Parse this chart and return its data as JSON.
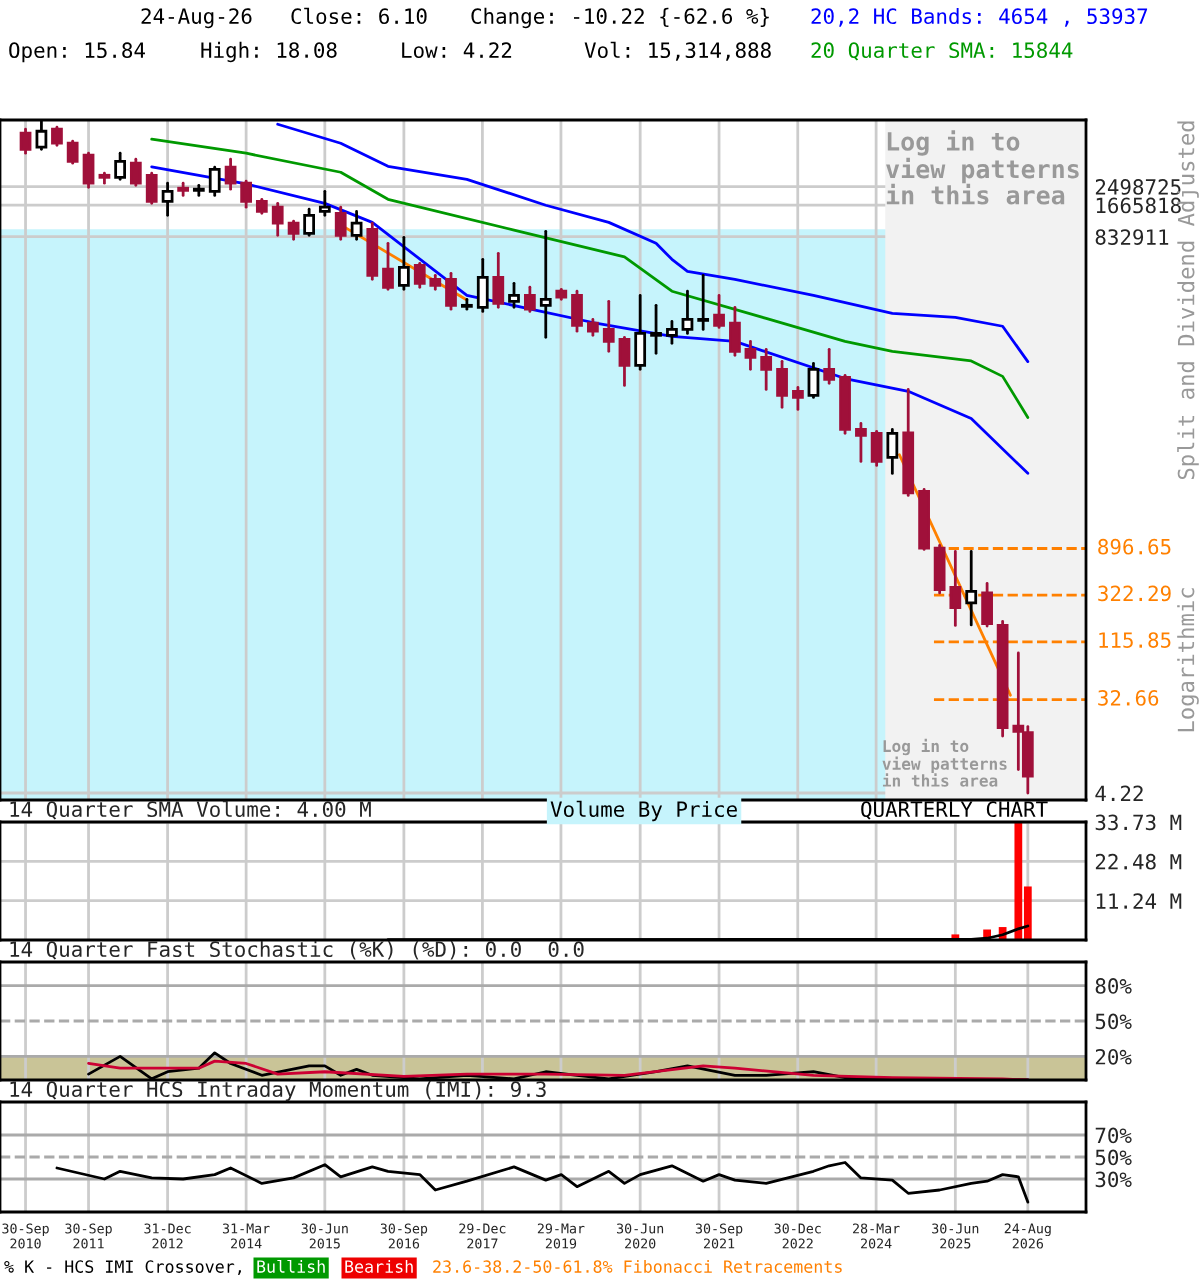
{
  "chart_data": [
    {
      "type": "candlestick",
      "log": true,
      "grid": true,
      "tick_labels": "y",
      "x": [
        "2010-09-30",
        "2010-12-31",
        "2011-03-31",
        "2011-06-30",
        "2011-09-30",
        "2011-12-31",
        "2012-03-31",
        "2012-06-30",
        "2012-09-30",
        "2012-12-31",
        "2013-03-31",
        "2013-06-30",
        "2013-09-30",
        "2013-12-31",
        "2014-03-31",
        "2014-06-30",
        "2014-09-30",
        "2014-12-31",
        "2015-03-31",
        "2015-06-30",
        "2015-09-30",
        "2015-12-31",
        "2016-03-31",
        "2016-06-30",
        "2016-09-30",
        "2016-12-31",
        "2017-03-31",
        "2017-06-30",
        "2017-09-30",
        "2017-12-31",
        "2018-03-31",
        "2018-06-30",
        "2018-09-30",
        "2018-12-31",
        "2019-03-31",
        "2019-06-30",
        "2019-09-30",
        "2019-12-31",
        "2020-03-31",
        "2020-06-30",
        "2020-09-30",
        "2020-12-31",
        "2021-03-31",
        "2021-06-30",
        "2021-09-30",
        "2021-12-31",
        "2022-03-31",
        "2022-06-30",
        "2022-09-30",
        "2022-12-31",
        "2023-03-31",
        "2023-06-30",
        "2023-09-30",
        "2023-12-31",
        "2024-03-31",
        "2024-06-30",
        "2024-09-30",
        "2024-12-31",
        "2025-03-31",
        "2025-06-30",
        "2025-09-30",
        "2025-12-31",
        "2026-03-31",
        "2026-06-30",
        "2026-08-24"
      ],
      "ohlc": [
        [
          8040000,
          8780000,
          5190000,
          5660000
        ],
        [
          5920000,
          10500000,
          5660000,
          8400000
        ],
        [
          8780000,
          9180000,
          6180000,
          6460000
        ],
        [
          6460000,
          6750000,
          4170000,
          4350000
        ],
        [
          4970000,
          5190000,
          2460000,
          2690000
        ],
        [
          3200000,
          3350000,
          2690000,
          3060000
        ],
        [
          3060000,
          5190000,
          2930000,
          4350000
        ],
        [
          4170000,
          4550000,
          2570000,
          2690000
        ],
        [
          3200000,
          3350000,
          1730000,
          1810000
        ],
        [
          1810000,
          2690000,
          1330000,
          2250000
        ],
        [
          2410000,
          2690000,
          2060000,
          2300000
        ],
        [
          2300000,
          2570000,
          2060000,
          2360000
        ],
        [
          2250000,
          3820000,
          2060000,
          3650000
        ],
        [
          3820000,
          4550000,
          2360000,
          2690000
        ],
        [
          2690000,
          2810000,
          1590000,
          1810000
        ],
        [
          1810000,
          1890000,
          1390000,
          1450000
        ],
        [
          1590000,
          1730000,
          859000,
          1120000
        ],
        [
          1120000,
          1170000,
          787000,
          898000
        ],
        [
          898000,
          1520000,
          859000,
          1330000
        ],
        [
          1450000,
          2250000,
          1330000,
          1590000
        ],
        [
          1390000,
          1590000,
          787000,
          859000
        ],
        [
          859000,
          1450000,
          787000,
          1120000
        ],
        [
          980000,
          1120000,
          327000,
          357000
        ],
        [
          408000,
          721000,
          263000,
          275000
        ],
        [
          287000,
          822000,
          263000,
          426000
        ],
        [
          445000,
          465000,
          275000,
          300000
        ],
        [
          327000,
          357000,
          263000,
          287000
        ],
        [
          327000,
          373000,
          170000,
          185000
        ],
        [
          181000,
          211000,
          170000,
          185000
        ],
        [
          177000,
          507000,
          162000,
          342000
        ],
        [
          342000,
          579000,
          177000,
          193000
        ],
        [
          202000,
          300000,
          177000,
          230000
        ],
        [
          230000,
          275000,
          162000,
          170000
        ],
        [
          185000,
          938000,
          91800,
          211000
        ],
        [
          252000,
          263000,
          211000,
          221000
        ],
        [
          230000,
          252000,
          105000,
          119000
        ],
        [
          125000,
          136000,
          95900,
          105000
        ],
        [
          109000,
          202000,
          67500,
          84000
        ],
        [
          87800,
          91800,
          32000,
          49700
        ],
        [
          49700,
          230000,
          45500,
          100000
        ],
        [
          95900,
          185000,
          64600,
          100000
        ],
        [
          95900,
          130000,
          80400,
          109000
        ],
        [
          109000,
          252000,
          100000,
          136000
        ],
        [
          133000,
          357000,
          109000,
          136000
        ],
        [
          149000,
          230000,
          114000,
          119000
        ],
        [
          125000,
          177000,
          61800,
          67500
        ],
        [
          70500,
          84000,
          45500,
          59200
        ],
        [
          59200,
          70500,
          29300,
          45500
        ],
        [
          45500,
          54200,
          19800,
          25700
        ],
        [
          28100,
          30600,
          18900,
          24600
        ],
        [
          25700,
          51900,
          24600,
          45500
        ],
        [
          45500,
          70500,
          33500,
          36500
        ],
        [
          38200,
          39900,
          11200,
          12200
        ],
        [
          12200,
          13900,
          6050,
          10700
        ],
        [
          11200,
          11700,
          5540,
          6050
        ],
        [
          6600,
          12200,
          4650,
          11200
        ],
        [
          11300,
          29300,
          2870,
          3040
        ],
        [
          3130,
          3270,
          878,
          905
        ],
        [
          905,
          959,
          339,
          365
        ],
        [
          382,
          840,
          166,
          246
        ],
        [
          272,
          840,
          168,
          350
        ],
        [
          339,
          417,
          164,
          173
        ],
        [
          166,
          181,
          14.7,
          17.7
        ],
        [
          18.3,
          90.9,
          7.05,
          16.32
        ],
        [
          15.84,
          18.08,
          4.22,
          6.1
        ]
      ],
      "series": [
        {
          "type": "line",
          "name": "20,2 HC Bands: 4654 , 53937",
          "color": "#0000ff",
          "x": [
            "2014-09-30",
            "2015-09-30",
            "2016-06-30",
            "2017-09-30",
            "2018-12-31",
            "2019-12-31",
            "2020-09-30",
            "2020-12-31",
            "2021-03-31",
            "2021-12-31",
            "2023-03-31",
            "2024-06-30",
            "2025-06-30",
            "2026-03-31",
            "2026-08-24"
          ],
          "values": [
            9800000,
            6460000,
            3900000,
            2930000,
            1660000,
            1140000,
            721000,
            507000,
            390000,
            327000,
            230000,
            155000,
            142000,
            117000,
            53937
          ]
        },
        {
          "type": "line",
          "color": "#0000ff",
          "x": [
            "2012-09-30",
            "2014-03-31",
            "2015-06-30",
            "2016-03-31",
            "2017-09-30",
            "2019-09-30",
            "2020-12-31",
            "2021-12-31",
            "2023-09-30",
            "2024-09-30",
            "2025-09-30",
            "2026-08-24"
          ],
          "values": [
            3850000,
            2650000,
            1730000,
            1140000,
            230000,
            127000,
            93800,
            84000,
            37200,
            28100,
            15500,
            4654
          ]
        },
        {
          "type": "line",
          "name": "20 Quarter SMA: 15844",
          "color": "#009900",
          "x": [
            "2012-09-30",
            "2014-03-31",
            "2015-09-30",
            "2016-06-30",
            "2018-06-30",
            "2020-03-31",
            "2020-12-31",
            "2022-06-30",
            "2023-09-30",
            "2024-06-30",
            "2025-09-30",
            "2026-03-31",
            "2026-08-24"
          ],
          "values": [
            7050000,
            5190000,
            3420000,
            1890000,
            963000,
            535000,
            252000,
            139000,
            84000,
            67500,
            54700,
            39000,
            15844
          ]
        },
        {
          "type": "line",
          "color": "#ff8000",
          "x": [
            "2015-09-30",
            "2017-09-30"
          ],
          "values": [
            1080000,
            208000
          ]
        },
        {
          "type": "line",
          "color": "#ff8000",
          "x": [
            "2024-08-10",
            "2026-05-15"
          ],
          "values": [
            7000,
            36
          ]
        }
      ],
      "xlim": [
        "2010-05-05",
        "2027-07-27"
      ],
      "xticks": [
        {
          "value": "2010-09-30",
          "label": null
        },
        {
          "value": "2011-09-30",
          "label": null
        },
        {
          "value": "2012-12-31",
          "label": null
        },
        {
          "value": "2014-03-31",
          "label": null
        },
        {
          "value": "2015-06-30",
          "label": null
        },
        {
          "value": "2016-09-30",
          "label": null
        },
        {
          "value": "2017-12-29",
          "label": null
        },
        {
          "value": "2019-03-29",
          "label": null
        },
        {
          "value": "2020-06-30",
          "label": null
        },
        {
          "value": "2021-09-30",
          "label": null
        },
        {
          "value": "2022-12-30",
          "label": null
        },
        {
          "value": "2024-03-28",
          "label": null
        },
        {
          "value": "2025-06-30",
          "label": null
        },
        {
          "value": "2026-08-24",
          "label": null
        }
      ],
      "ylim": [
        3.62,
        10750000
      ],
      "yticks": [
        4.22,
        {
          "value": 832911,
          "label": "832911"
        },
        1665818,
        2498725
      ],
      "ref_lines": [
        {
          "axis": "y",
          "value": 896.65,
          "label": "896.65",
          "color": "#ff8000",
          "line_style": "dashed"
        },
        {
          "axis": "y",
          "value": 322.29,
          "label": "322.29",
          "color": "#ff8000",
          "line_style": "dashed"
        },
        {
          "axis": "y",
          "value": 115.85,
          "label": "115.85",
          "color": "#ff8000",
          "line_style": "dashed"
        },
        {
          "axis": "y",
          "value": 32.66,
          "label": "32.66",
          "color": "#ff8000",
          "line_style": "dashed"
        }
      ],
      "bands": [
        {
          "axis": "y",
          "from": 3.62,
          "to": 980000,
          "color": "#c6f4fc"
        },
        {
          "axis": "x",
          "from": "2024-05-20",
          "to": "2027-07-27",
          "color": "#f2f2f2"
        }
      ],
      "annotations": [
        "24-Aug-26",
        "Close: 6.10",
        "Change: -10.22 {-62.6 %}",
        "Open: 15.84",
        "High: 18.08",
        "Low: 4.22",
        "Vol: 15,314,888",
        "Log in to\nview patterns\nin this area",
        "Log in to\nview patterns\nin this area",
        "Split and Dividend Adjusted",
        "Logarithmic"
      ]
    },
    {
      "type": "bar",
      "title": "14 Quarter SMA Volume: 4.00 M",
      "grid": true,
      "tick_labels": "y",
      "x": [
        "2010-09-30",
        "2010-12-31",
        "2011-03-31",
        "2011-06-30",
        "2011-09-30",
        "2011-12-31",
        "2012-03-31",
        "2012-06-30",
        "2012-09-30",
        "2012-12-31",
        "2013-03-31",
        "2013-06-30",
        "2013-09-30",
        "2013-12-31",
        "2014-03-31",
        "2014-06-30",
        "2014-09-30",
        "2014-12-31",
        "2015-03-31",
        "2015-06-30",
        "2015-09-30",
        "2015-12-31",
        "2016-03-31",
        "2016-06-30",
        "2016-09-30",
        "2016-12-31",
        "2017-03-31",
        "2017-06-30",
        "2017-09-30",
        "2017-12-31",
        "2018-03-31",
        "2018-06-30",
        "2018-09-30",
        "2018-12-31",
        "2019-03-31",
        "2019-06-30",
        "2019-09-30",
        "2019-12-31",
        "2020-03-31",
        "2020-06-30",
        "2020-09-30",
        "2020-12-31",
        "2021-03-31",
        "2021-06-30",
        "2021-09-30",
        "2021-12-31",
        "2022-03-31",
        "2022-06-30",
        "2022-09-30",
        "2022-12-31",
        "2023-03-31",
        "2023-06-30",
        "2023-09-30",
        "2023-12-31",
        "2024-03-31",
        "2024-06-30",
        "2024-09-30",
        "2024-12-31",
        "2025-03-31",
        "2025-06-30",
        "2025-09-30",
        "2025-12-31",
        "2026-03-31",
        "2026-06-30",
        "2026-08-24"
      ],
      "series": [
        {
          "type": "bar",
          "color": "#ff0000",
          "values": [
            0,
            0,
            0,
            0,
            0,
            0,
            0,
            0,
            0,
            0,
            0,
            0,
            0,
            0,
            0,
            0,
            0,
            0,
            0,
            0,
            0,
            0,
            0,
            0,
            0,
            0,
            0,
            0,
            0,
            0,
            0,
            0,
            0,
            0,
            0,
            0,
            0,
            0,
            0,
            0,
            0,
            0,
            0,
            0,
            0,
            0,
            0,
            0,
            0,
            0,
            0,
            0,
            0,
            0,
            0,
            0,
            0,
            0,
            0,
            1.6,
            0,
            3.0,
            3.7,
            33.7,
            15.3
          ]
        },
        {
          "type": "line",
          "color": "#000000",
          "x": [
            "2016-06-30",
            "2025-09-30",
            "2025-12-31",
            "2026-03-31",
            "2026-06-30",
            "2026-08-24"
          ],
          "values": [
            0.1,
            0.2,
            0.5,
            1.5,
            3.2,
            4.0
          ]
        }
      ],
      "xlim": [
        "2010-05-05",
        "2027-07-27"
      ],
      "xticks": [
        {
          "value": "2010-09-30",
          "label": null
        },
        {
          "value": "2011-09-30",
          "label": null
        },
        {
          "value": "2012-12-31",
          "label": null
        },
        {
          "value": "2014-03-31",
          "label": null
        },
        {
          "value": "2015-06-30",
          "label": null
        },
        {
          "value": "2016-09-30",
          "label": null
        },
        {
          "value": "2017-12-29",
          "label": null
        },
        {
          "value": "2019-03-29",
          "label": null
        },
        {
          "value": "2020-06-30",
          "label": null
        },
        {
          "value": "2021-09-30",
          "label": null
        },
        {
          "value": "2022-12-30",
          "label": null
        },
        {
          "value": "2024-03-28",
          "label": null
        },
        {
          "value": "2025-06-30",
          "label": null
        },
        {
          "value": "2026-08-24",
          "label": null
        }
      ],
      "ylim": [
        0,
        33.73
      ],
      "yticks": [
        {
          "value": 11.24,
          "label": "11.24 M"
        },
        {
          "value": 22.48,
          "label": "22.48 M"
        },
        {
          "value": 33.73,
          "label": "33.73 M"
        }
      ],
      "annotations": [
        "Volume By Price",
        "QUARTERLY CHART"
      ]
    },
    {
      "type": "line",
      "title": "14 Quarter Fast Stochastic (%K) (%D): 0.0  0.0",
      "grid": "x",
      "tick_labels": "y",
      "series": [
        {
          "color": "#000000",
          "x": [
            "2011-09-30",
            "2012-03-31",
            "2012-09-30",
            "2012-12-31",
            "2013-06-30",
            "2013-09-30",
            "2013-12-31",
            "2014-06-30",
            "2015-03-31",
            "2015-06-30",
            "2015-09-30",
            "2015-12-31",
            "2016-03-31",
            "2016-12-31",
            "2017-09-30",
            "2018-06-30",
            "2018-12-31",
            "2019-06-30",
            "2019-12-31",
            "2020-09-30",
            "2021-03-31",
            "2021-12-31",
            "2022-06-30",
            "2023-03-31",
            "2023-09-30",
            "2024-12-31",
            "2026-08-24"
          ],
          "values": [
            5,
            20,
            1,
            7,
            10,
            23,
            14,
            4,
            12,
            12,
            4,
            9,
            4,
            1,
            4,
            1,
            7,
            4,
            1,
            7,
            12,
            4,
            4,
            7,
            2,
            1,
            0
          ]
        },
        {
          "color": "#cc0033",
          "x": [
            "2011-09-30",
            "2012-03-31",
            "2013-06-30",
            "2013-09-30",
            "2014-03-31",
            "2014-09-30",
            "2015-06-30",
            "2016-09-30",
            "2017-09-30",
            "2018-12-31",
            "2020-03-31",
            "2021-06-30",
            "2021-12-31",
            "2023-03-31",
            "2024-06-30",
            "2026-03-31",
            "2026-08-24"
          ],
          "values": [
            14,
            10,
            10,
            16,
            14,
            5,
            7,
            3,
            5,
            5,
            4,
            12,
            10,
            4,
            2,
            1,
            0
          ]
        }
      ],
      "xlim": [
        "2010-05-05",
        "2027-07-27"
      ],
      "xticks": [
        {
          "value": "2010-09-30",
          "label": null
        },
        {
          "value": "2011-09-30",
          "label": null
        },
        {
          "value": "2012-12-31",
          "label": null
        },
        {
          "value": "2014-03-31",
          "label": null
        },
        {
          "value": "2015-06-30",
          "label": null
        },
        {
          "value": "2016-09-30",
          "label": null
        },
        {
          "value": "2017-12-29",
          "label": null
        },
        {
          "value": "2019-03-29",
          "label": null
        },
        {
          "value": "2020-06-30",
          "label": null
        },
        {
          "value": "2021-09-30",
          "label": null
        },
        {
          "value": "2022-12-30",
          "label": null
        },
        {
          "value": "2024-03-28",
          "label": null
        },
        {
          "value": "2025-06-30",
          "label": null
        },
        {
          "value": "2026-08-24",
          "label": null
        }
      ],
      "ylim": [
        0,
        100
      ],
      "yticks": [
        {
          "value": 20,
          "label": "20%"
        },
        {
          "value": 50,
          "label": "50%"
        },
        {
          "value": 80,
          "label": "80%"
        }
      ],
      "ref_lines": [
        {
          "axis": "y",
          "value": 20,
          "color": "#aaaaaa",
          "line_style": "solid"
        },
        {
          "axis": "y",
          "value": 50,
          "color": "#aaaaaa",
          "line_style": "dashed"
        },
        {
          "axis": "y",
          "value": 80,
          "color": "#aaaaaa",
          "line_style": "solid"
        }
      ],
      "bands": [
        {
          "axis": "y",
          "from": 0,
          "to": 20,
          "color": "#c9c497"
        }
      ]
    },
    {
      "type": "line",
      "title": "14 Quarter HCS Intraday Momentum (IMI): 9.3",
      "grid": "x",
      "series": [
        {
          "color": "#000000",
          "x": [
            "2011-03-31",
            "2011-12-31",
            "2012-03-31",
            "2012-09-30",
            "2013-03-31",
            "2013-09-30",
            "2013-12-31",
            "2014-06-30",
            "2014-12-31",
            "2015-06-30",
            "2015-09-30",
            "2016-03-31",
            "2016-06-30",
            "2016-12-31",
            "2017-03-31",
            "2017-09-30",
            "2018-06-30",
            "2018-12-31",
            "2019-03-31",
            "2019-06-30",
            "2019-12-31",
            "2020-03-31",
            "2020-06-30",
            "2020-12-31",
            "2021-06-30",
            "2021-09-30",
            "2021-12-31",
            "2022-06-30",
            "2023-03-31",
            "2023-06-30",
            "2023-09-30",
            "2023-12-31",
            "2024-06-30",
            "2024-09-30",
            "2025-03-31",
            "2025-09-30",
            "2025-12-31",
            "2026-03-31",
            "2026-06-30",
            "2026-08-24"
          ],
          "values": [
            40,
            30,
            37,
            31,
            30,
            34,
            40,
            26,
            31,
            43,
            32,
            41,
            37,
            34,
            20,
            28,
            41,
            29,
            34,
            23,
            37,
            26,
            34,
            42,
            28,
            34,
            29,
            26,
            37,
            42,
            45,
            31,
            29,
            17,
            20,
            26,
            28,
            34,
            32,
            9
          ]
        }
      ],
      "xlim": [
        "2010-05-05",
        "2027-07-27"
      ],
      "xticks": [
        {
          "value": "2010-09-30",
          "label": "30-Sep\n2010"
        },
        {
          "value": "2011-09-30",
          "label": "30-Sep\n2011"
        },
        {
          "value": "2012-12-31",
          "label": "31-Dec\n2012"
        },
        {
          "value": "2014-03-31",
          "label": "31-Mar\n2014"
        },
        {
          "value": "2015-06-30",
          "label": "30-Jun\n2015"
        },
        {
          "value": "2016-09-30",
          "label": "30-Sep\n2016"
        },
        {
          "value": "2017-12-29",
          "label": "29-Dec\n2017"
        },
        {
          "value": "2019-03-29",
          "label": "29-Mar\n2019"
        },
        {
          "value": "2020-06-30",
          "label": "30-Jun\n2020"
        },
        {
          "value": "2021-09-30",
          "label": "30-Sep\n2021"
        },
        {
          "value": "2022-12-30",
          "label": "30-Dec\n2022"
        },
        {
          "value": "2024-03-28",
          "label": "28-Mar\n2024"
        },
        {
          "value": "2025-06-30",
          "label": "30-Jun\n2025"
        },
        {
          "value": "2026-08-24",
          "label": "24-Aug\n2026"
        }
      ],
      "ylim": [
        0,
        100
      ],
      "yticks": [
        {
          "value": 30,
          "label": "30%"
        },
        {
          "value": 50,
          "label": "50%"
        },
        {
          "value": 70,
          "label": "70%"
        }
      ],
      "ref_lines": [
        {
          "axis": "y",
          "value": 30,
          "color": "#aaaaaa",
          "line_style": "solid"
        },
        {
          "axis": "y",
          "value": 50,
          "color": "#aaaaaa",
          "line_style": "dashed"
        },
        {
          "axis": "y",
          "value": 70,
          "color": "#aaaaaa",
          "line_style": "solid"
        }
      ],
      "annotations": [
        "% K - HCS IMI Crossover,",
        "Bullish",
        "Bearish",
        "23.6-38.2-50-61.8% Fibonacci Retracements"
      ]
    }
  ]
}
